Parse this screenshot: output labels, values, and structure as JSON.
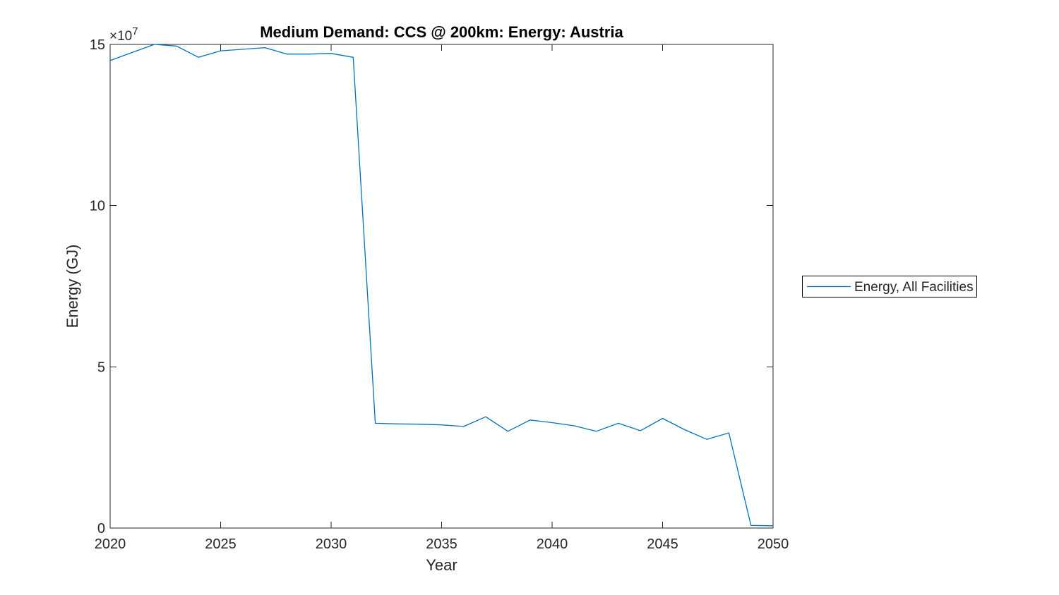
{
  "chart_data": {
    "type": "line",
    "title": "Medium Demand: CCS @ 200km: Energy: Austria",
    "xlabel": "Year",
    "ylabel": "Energy (GJ)",
    "exponent": {
      "base": "×10",
      "power": "7"
    },
    "y_scale_note": "y values in units of 10^7 GJ (axis multiplier ×10^7)",
    "xlim": [
      2020,
      2050
    ],
    "ylim_x1e7": [
      0,
      15
    ],
    "x_ticks": [
      2020,
      2025,
      2030,
      2035,
      2040,
      2045,
      2050
    ],
    "y_ticks_x1e7": [
      0,
      5,
      10,
      15
    ],
    "grid": false,
    "legend_position": "outside-right",
    "series": [
      {
        "name": "Energy, All Facilities",
        "color": "#0072BD",
        "x": [
          2020,
          2021,
          2022,
          2023,
          2024,
          2025,
          2026,
          2027,
          2028,
          2029,
          2030,
          2031,
          2032,
          2033,
          2034,
          2035,
          2036,
          2037,
          2038,
          2039,
          2040,
          2041,
          2042,
          2043,
          2044,
          2045,
          2046,
          2047,
          2048,
          2049,
          2050
        ],
        "values_x1e7": [
          14.5,
          14.75,
          15.0,
          14.95,
          14.6,
          14.8,
          14.85,
          14.9,
          14.7,
          14.7,
          14.72,
          14.6,
          3.25,
          3.23,
          3.22,
          3.2,
          3.15,
          3.45,
          3.0,
          3.35,
          3.27,
          3.17,
          3.0,
          3.25,
          3.02,
          3.4,
          3.05,
          2.75,
          2.95,
          0.08,
          0.07
        ]
      }
    ]
  },
  "axis_style": {
    "color": "#262626",
    "tick_length": 9,
    "background": "#ffffff"
  }
}
